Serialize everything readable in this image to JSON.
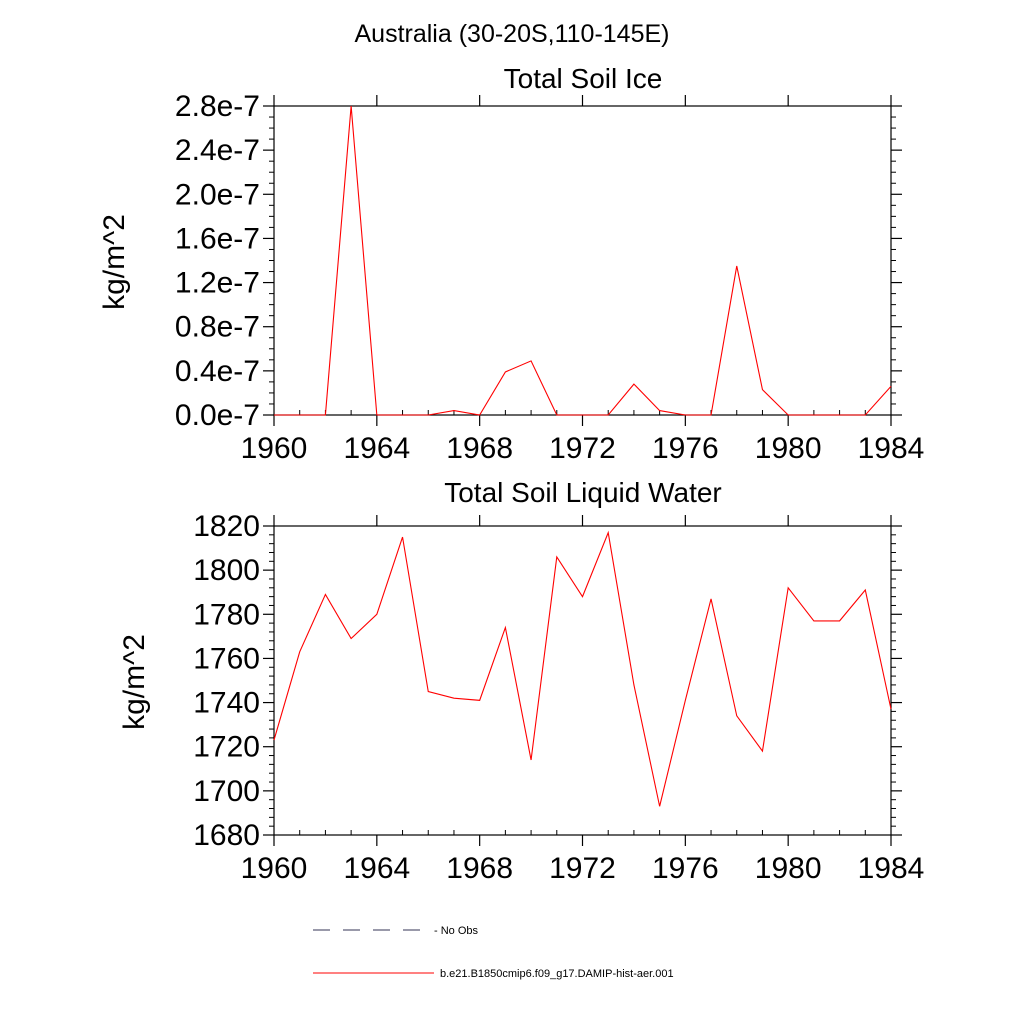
{
  "page_title": "Australia (30-20S,110-145E)",
  "colors": {
    "series": "#ff0000",
    "axis": "#000000",
    "no_obs": "#333355"
  },
  "legend": {
    "no_obs_label": "- No Obs",
    "series_label": "b.e21.B1850cmip6.f09_g17.DAMIP-hist-aer.001"
  },
  "chart_data": [
    {
      "type": "line",
      "title": "Total Soil Ice",
      "xlabel": "",
      "ylabel": "kg/m^2",
      "xlim": [
        1960,
        1984
      ],
      "ylim": [
        0,
        2.8e-07
      ],
      "x_ticks": [
        1960,
        1964,
        1968,
        1972,
        1976,
        1980,
        1984
      ],
      "x_tick_labels": [
        "1960",
        "1964",
        "1968",
        "1972",
        "1976",
        "1980",
        "1984"
      ],
      "y_ticks": [
        0,
        4e-08,
        8e-08,
        1.2e-07,
        1.6e-07,
        2e-07,
        2.4e-07,
        2.8e-07
      ],
      "y_tick_labels": [
        "0.0e-7",
        "0.4e-7",
        "0.8e-7",
        "1.2e-7",
        "1.6e-7",
        "2.0e-7",
        "2.4e-7",
        "2.8e-7"
      ],
      "y_minor_step": 1e-08,
      "x": [
        1960,
        1961,
        1962,
        1963,
        1964,
        1965,
        1966,
        1967,
        1968,
        1969,
        1970,
        1971,
        1972,
        1973,
        1974,
        1975,
        1976,
        1977,
        1978,
        1979,
        1980,
        1981,
        1982,
        1983,
        1984
      ],
      "series": [
        {
          "values": [
            0,
            0,
            0,
            2.8e-07,
            0,
            0,
            0,
            4e-09,
            0,
            3.9e-08,
            4.9e-08,
            0,
            0,
            0,
            2.8e-08,
            4e-09,
            0,
            0,
            1.35e-07,
            2.3e-08,
            0,
            0,
            0,
            0,
            2.6e-08
          ]
        }
      ],
      "grid": false
    },
    {
      "type": "line",
      "title": "Total Soil Liquid Water",
      "xlabel": "",
      "ylabel": "kg/m^2",
      "xlim": [
        1960,
        1984
      ],
      "ylim": [
        1680,
        1820
      ],
      "x_ticks": [
        1960,
        1964,
        1968,
        1972,
        1976,
        1980,
        1984
      ],
      "x_tick_labels": [
        "1960",
        "1964",
        "1968",
        "1972",
        "1976",
        "1980",
        "1984"
      ],
      "y_ticks": [
        1680,
        1700,
        1720,
        1740,
        1760,
        1780,
        1800,
        1820
      ],
      "y_tick_labels": [
        "1680",
        "1700",
        "1720",
        "1740",
        "1760",
        "1780",
        "1800",
        "1820"
      ],
      "y_minor_step": 4,
      "x": [
        1960,
        1961,
        1962,
        1963,
        1964,
        1965,
        1966,
        1967,
        1968,
        1969,
        1970,
        1971,
        1972,
        1973,
        1974,
        1975,
        1976,
        1977,
        1978,
        1979,
        1980,
        1981,
        1982,
        1983,
        1984
      ],
      "series": [
        {
          "values": [
            1723,
            1763,
            1789,
            1769,
            1780,
            1815,
            1745,
            1742,
            1741,
            1774,
            1714,
            1806,
            1788,
            1817,
            1748,
            1693,
            1741,
            1787,
            1734,
            1718,
            1792,
            1777,
            1777,
            1791,
            1737
          ]
        }
      ],
      "grid": false
    }
  ]
}
